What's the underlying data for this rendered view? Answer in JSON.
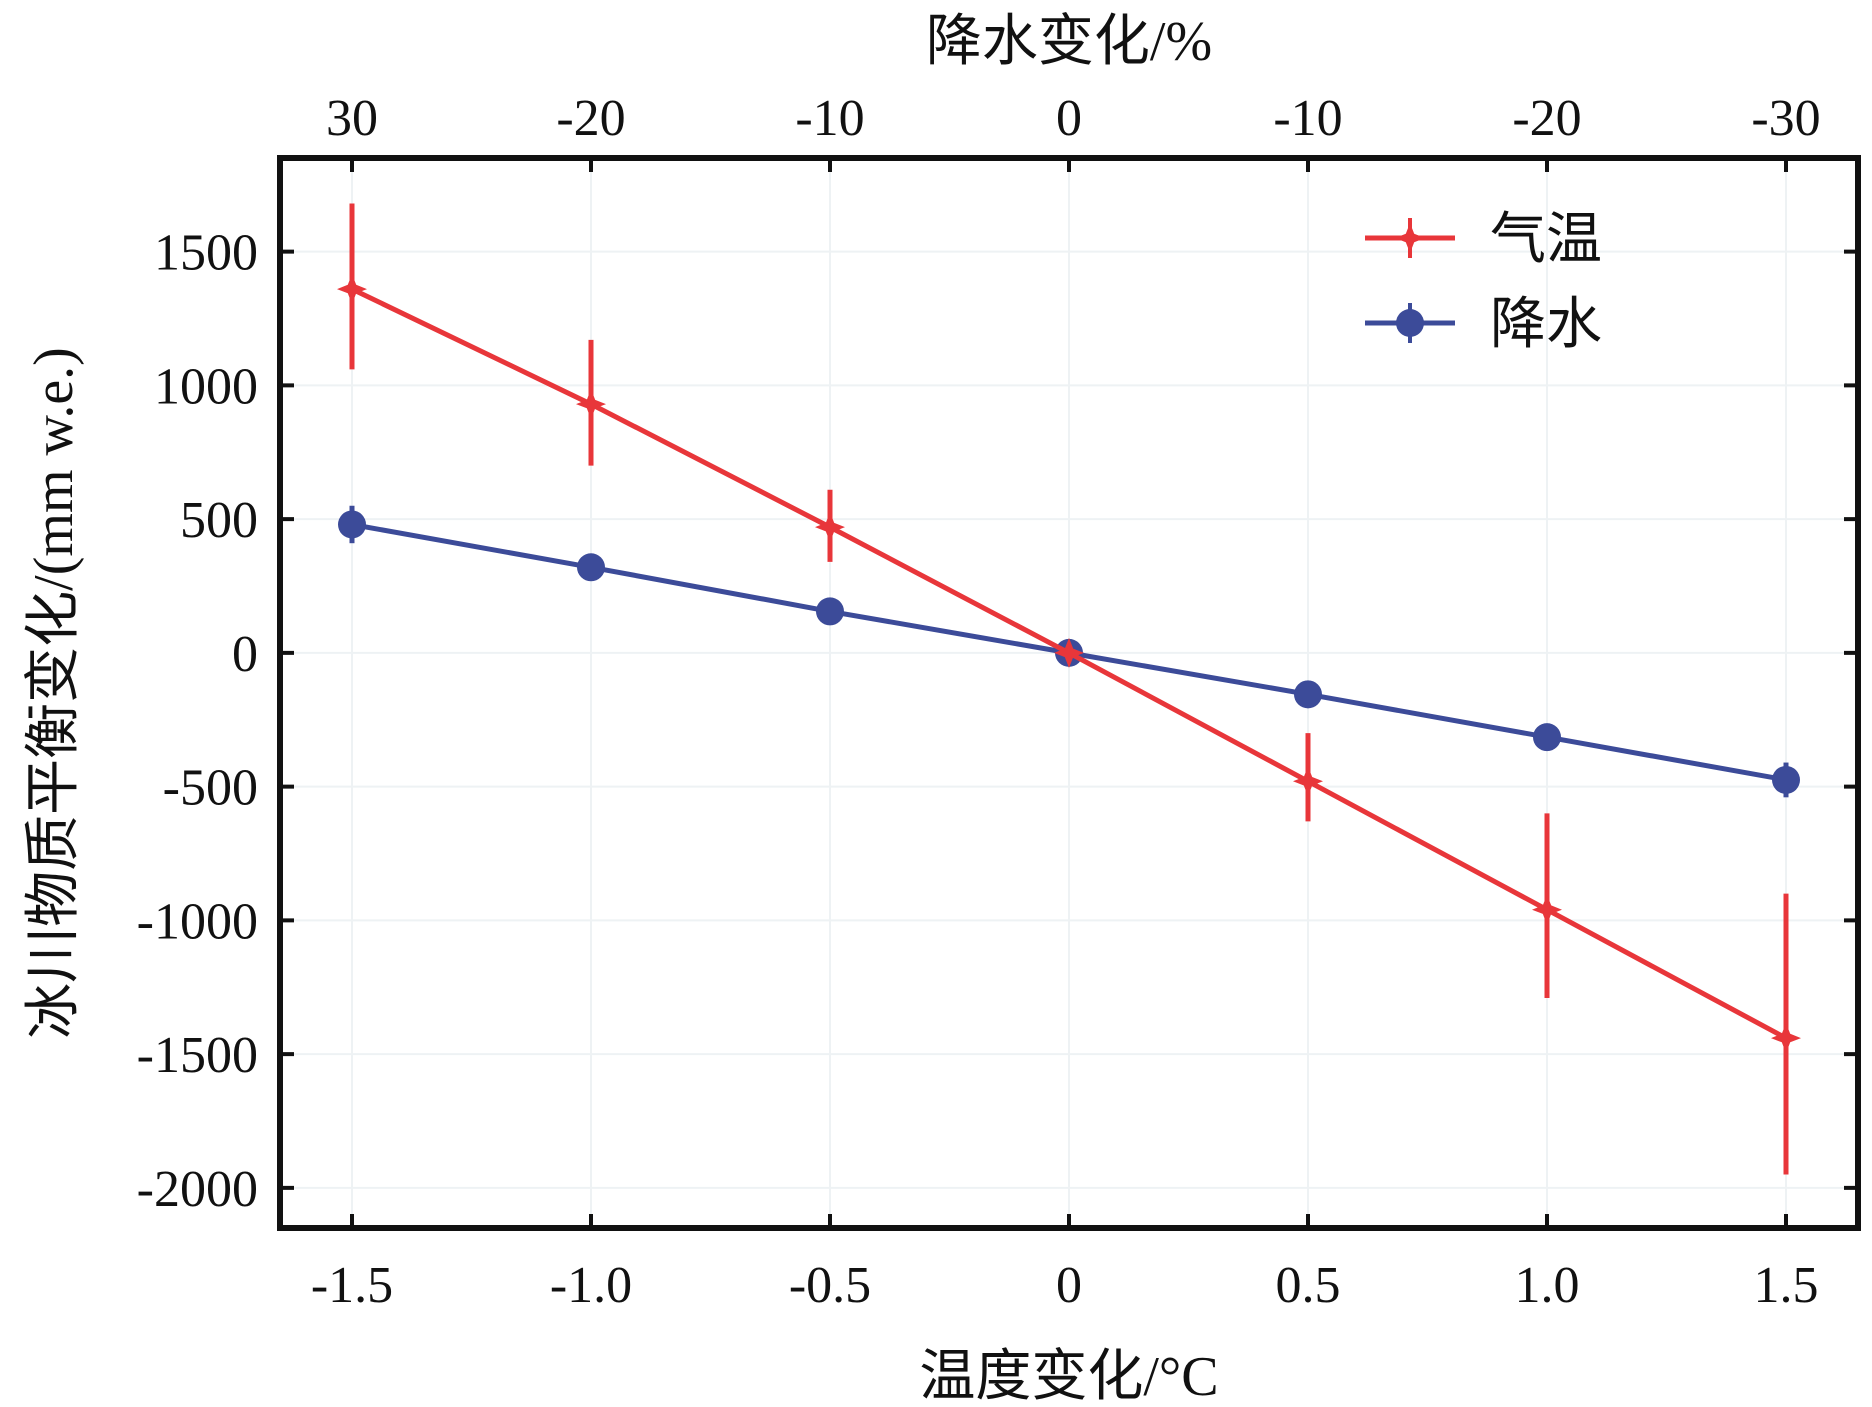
{
  "chart_data": {
    "type": "line",
    "xlabel": "温度变化/°C",
    "x2label": "降水变化/%",
    "ylabel": "冰川物质平衡变化/(mm w.e.)",
    "x": [
      -1.5,
      -1.0,
      -0.5,
      0,
      0.5,
      1.0,
      1.5
    ],
    "x_tick_labels": [
      "-1.5",
      "-1.0",
      "-0.5",
      "0",
      "0.5",
      "1.0",
      "1.5"
    ],
    "x2_tick_labels": [
      "30",
      "-20",
      "-10",
      "0",
      "-10",
      "-20",
      "-30"
    ],
    "ylim": [
      -2150,
      1850
    ],
    "y_ticks": [
      1500,
      1000,
      500,
      0,
      -500,
      -1000,
      -1500,
      -2000
    ],
    "y_tick_labels": [
      "1500",
      "1000",
      "500",
      "0",
      "-500",
      "-1000",
      "-1500",
      "-2000"
    ],
    "grid": true,
    "legend_position": "top-right",
    "series": [
      {
        "name": "气温",
        "color": "#e8363a",
        "marker": "star",
        "values": [
          1360,
          930,
          470,
          0,
          -480,
          -960,
          -1440
        ],
        "error_low": [
          1060,
          700,
          340,
          0,
          -630,
          -1290,
          -1950
        ],
        "error_high": [
          1680,
          1170,
          610,
          0,
          -300,
          -600,
          -900
        ]
      },
      {
        "name": "降水",
        "color": "#3c4b99",
        "marker": "circle",
        "values": [
          480,
          320,
          155,
          0,
          -155,
          -315,
          -475
        ],
        "error_low": [
          410,
          290,
          130,
          -20,
          -180,
          -340,
          -540
        ],
        "error_high": [
          550,
          350,
          180,
          20,
          -130,
          -290,
          -410
        ]
      }
    ]
  }
}
